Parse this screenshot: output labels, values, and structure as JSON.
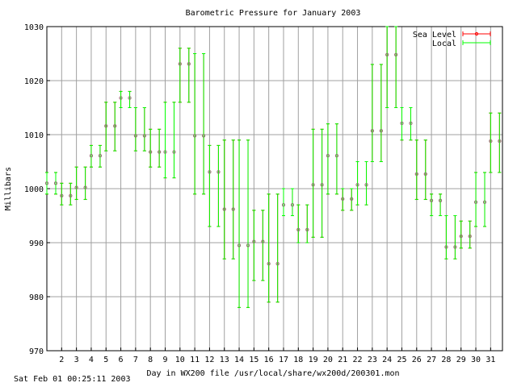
{
  "chart_data": {
    "type": "line",
    "title": "Barometric Pressure for January 2003",
    "xlabel": "Day in WX200 file /usr/local/share/wx200d/200301.mon",
    "ylabel": "Millibars",
    "ylim": [
      970,
      1030
    ],
    "yticks": [
      970,
      980,
      990,
      1000,
      1010,
      1020,
      1030
    ],
    "xlim": [
      1.0,
      31.8
    ],
    "xticks": [
      2,
      3,
      4,
      5,
      6,
      7,
      8,
      9,
      10,
      11,
      12,
      13,
      14,
      15,
      16,
      17,
      18,
      19,
      20,
      21,
      22,
      23,
      24,
      25,
      26,
      27,
      28,
      29,
      30,
      31
    ],
    "grid": true,
    "legend_position": "top-right",
    "series": [
      {
        "name": "Sea Level",
        "color": "#ff0000",
        "style": "errorbars",
        "x": [
          1.0,
          1.6,
          2.0,
          2.6,
          3.0,
          3.6,
          4.0,
          4.6,
          5.0,
          5.6,
          6.0,
          6.6,
          7.0,
          7.6,
          8.0,
          8.6,
          9.0,
          9.6,
          10.0,
          10.6,
          11.0,
          11.6,
          12.0,
          12.6,
          13.0,
          13.6,
          14.0,
          14.6,
          15.0,
          15.6,
          16.0,
          16.6,
          17.0,
          17.6,
          18.0,
          18.6,
          19.0,
          19.6,
          20.0,
          20.6,
          21.0,
          21.6,
          22.0,
          22.6,
          23.0,
          23.6,
          24.0,
          24.6,
          25.0,
          25.6,
          26.0,
          26.6,
          27.0,
          27.6,
          28.0,
          28.6,
          29.0,
          29.6,
          30.0,
          30.6,
          31.0,
          31.6
        ],
        "y": [
          1001,
          1001,
          998.7,
          998.7,
          1000.2,
          1000.2,
          1006.1,
          1006.1,
          1011.6,
          1011.6,
          1016.8,
          1016.8,
          1009.8,
          1009.8,
          1006.8,
          1006.8,
          1006.8,
          1006.8,
          1023.1,
          1023.1,
          1009.8,
          1009.8,
          1003.1,
          1003.1,
          996.2,
          996.2,
          989.5,
          989.5,
          990.2,
          990.2,
          986.1,
          986.1,
          997,
          997,
          992.4,
          992.4,
          1000.7,
          1000.7,
          1006.1,
          1006.1,
          998.1,
          998.1,
          1000.7,
          1000.7,
          1010.7,
          1010.7,
          1024.8,
          1024.8,
          1012.1,
          1012.1,
          1002.7,
          1002.7,
          997.8,
          997.8,
          989.2,
          989.2,
          991.2,
          991.2,
          997.5,
          997.5,
          1008.8,
          1008.8
        ],
        "ymin": [
          999,
          999,
          997,
          997,
          998,
          998,
          1004,
          1004,
          1007,
          1007,
          1015,
          1015,
          1007,
          1007,
          1004,
          1004,
          1002,
          1002,
          1016,
          1016,
          999,
          999,
          993,
          993,
          987,
          987,
          978,
          978,
          983,
          983,
          979,
          979,
          995,
          995,
          990,
          990,
          991,
          991,
          999,
          999,
          996,
          996,
          997,
          997,
          1005,
          1005,
          1015,
          1015,
          1009,
          1009,
          998,
          998,
          995,
          995,
          987,
          987,
          989,
          989,
          993,
          993,
          1003,
          1003
        ],
        "ymax": [
          1003,
          1003,
          1001,
          1001,
          1004,
          1004,
          1008,
          1008,
          1016,
          1016,
          1018,
          1018,
          1015,
          1015,
          1011,
          1011,
          1016,
          1016,
          1026,
          1026,
          1025,
          1025,
          1008,
          1008,
          1009,
          1009,
          1009,
          1009,
          996,
          996,
          999,
          999,
          1000,
          1000,
          997,
          997,
          1011,
          1011,
          1012,
          1012,
          1000,
          1000,
          1005,
          1005,
          1023,
          1023,
          1030,
          1030,
          1015,
          1015,
          1009,
          1009,
          999,
          999,
          995,
          995,
          994,
          994,
          1003,
          1003,
          1014,
          1014
        ]
      },
      {
        "name": "Local",
        "color": "#00ff00",
        "style": "errorbars",
        "x": [
          1.0,
          1.6,
          2.0,
          2.6,
          3.0,
          3.6,
          4.0,
          4.6,
          5.0,
          5.6,
          6.0,
          6.6,
          7.0,
          7.6,
          8.0,
          8.6,
          9.0,
          9.6,
          10.0,
          10.6,
          11.0,
          11.6,
          12.0,
          12.6,
          13.0,
          13.6,
          14.0,
          14.6,
          15.0,
          15.6,
          16.0,
          16.6,
          17.0,
          17.6,
          18.0,
          18.6,
          19.0,
          19.6,
          20.0,
          20.6,
          21.0,
          21.6,
          22.0,
          22.6,
          23.0,
          23.6,
          24.0,
          24.6,
          25.0,
          25.6,
          26.0,
          26.6,
          27.0,
          27.6,
          28.0,
          28.6,
          29.0,
          29.6,
          30.0,
          30.6,
          31.0,
          31.6
        ],
        "y": [
          1001,
          1001,
          998.7,
          998.7,
          1000.2,
          1000.2,
          1006.1,
          1006.1,
          1011.6,
          1011.6,
          1016.8,
          1016.8,
          1009.8,
          1009.8,
          1006.8,
          1006.8,
          1006.8,
          1006.8,
          1023.1,
          1023.1,
          1009.8,
          1009.8,
          1003.1,
          1003.1,
          996.2,
          996.2,
          989.5,
          989.5,
          990.2,
          990.2,
          986.1,
          986.1,
          997,
          997,
          992.4,
          992.4,
          1000.7,
          1000.7,
          1006.1,
          1006.1,
          998.1,
          998.1,
          1000.7,
          1000.7,
          1010.7,
          1010.7,
          1024.8,
          1024.8,
          1012.1,
          1012.1,
          1002.7,
          1002.7,
          997.8,
          997.8,
          989.2,
          989.2,
          991.2,
          991.2,
          997.5,
          997.5,
          1008.8,
          1008.8
        ],
        "ymin": [
          999,
          999,
          997,
          997,
          998,
          998,
          1004,
          1004,
          1007,
          1007,
          1015,
          1015,
          1007,
          1007,
          1004,
          1004,
          1002,
          1002,
          1016,
          1016,
          999,
          999,
          993,
          993,
          987,
          987,
          978,
          978,
          983,
          983,
          979,
          979,
          995,
          995,
          990,
          990,
          991,
          991,
          999,
          999,
          996,
          996,
          997,
          997,
          1005,
          1005,
          1015,
          1015,
          1009,
          1009,
          998,
          998,
          995,
          995,
          987,
          987,
          989,
          989,
          993,
          993,
          1003,
          1003
        ],
        "ymax": [
          1003,
          1003,
          1001,
          1001,
          1004,
          1004,
          1008,
          1008,
          1016,
          1016,
          1018,
          1018,
          1015,
          1015,
          1011,
          1011,
          1016,
          1016,
          1026,
          1026,
          1025,
          1025,
          1008,
          1008,
          1009,
          1009,
          1009,
          1009,
          996,
          996,
          999,
          999,
          1000,
          1000,
          997,
          997,
          1011,
          1011,
          1012,
          1012,
          1000,
          1000,
          1005,
          1005,
          1023,
          1023,
          1030,
          1030,
          1015,
          1015,
          1009,
          1009,
          999,
          999,
          995,
          995,
          994,
          994,
          1003,
          1003,
          1014,
          1014
        ]
      }
    ]
  },
  "footer": {
    "timestamp": "Sat Feb 01 00:25:11 2003"
  }
}
